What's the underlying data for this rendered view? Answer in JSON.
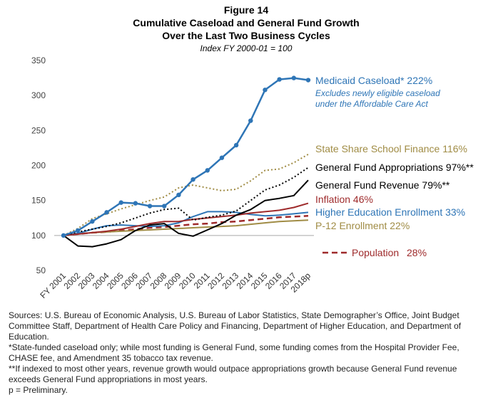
{
  "chart_data": {
    "type": "line",
    "figure_label": "Figure 14",
    "title_line1": "Cumulative Caseload and General Fund Growth",
    "title_line2": "Over the Last Two Business Cycles",
    "subtitle": "Index FY 2000-01 = 100",
    "categories": [
      "FY 2001",
      "2002",
      "2003",
      "2004",
      "2005",
      "2006",
      "2007",
      "2008",
      "2009",
      "2010",
      "2011",
      "2012",
      "2013",
      "2014",
      "2015",
      "2016",
      "2017",
      "2018p"
    ],
    "ylim": [
      50,
      350
    ],
    "yticks": [
      50,
      100,
      150,
      200,
      250,
      300,
      350
    ],
    "baseline": 100,
    "series": [
      {
        "key": "medicaid",
        "name": "Medicaid Caseload* 222%",
        "note1": "Excludes newly eligible caseload",
        "note2": "under the Affordable Care Act",
        "color": "#2e75b6",
        "style": "solid-markers",
        "values": [
          100,
          107,
          120,
          133,
          147,
          146,
          142,
          142,
          158,
          180,
          193,
          211,
          229,
          264,
          308,
          323,
          325,
          322
        ]
      },
      {
        "key": "school",
        "name": "State Share School Finance 116%",
        "color": "#a08c45",
        "style": "dotted",
        "values": [
          100,
          110,
          124,
          131,
          138,
          144,
          150,
          155,
          168,
          172,
          168,
          164,
          166,
          178,
          193,
          195,
          204,
          216
        ]
      },
      {
        "key": "approp",
        "name": "General Fund Appropriations 97%**",
        "color": "#000000",
        "style": "dotted",
        "values": [
          100,
          105,
          109,
          113,
          118,
          125,
          132,
          137,
          139,
          122,
          126,
          129,
          135,
          150,
          165,
          172,
          183,
          197
        ]
      },
      {
        "key": "revenue",
        "name": "General Fund Revenue 79%**",
        "color": "#000000",
        "style": "solid",
        "values": [
          100,
          85,
          84,
          88,
          94,
          107,
          115,
          117,
          103,
          99,
          108,
          117,
          129,
          137,
          150,
          153,
          157,
          179
        ]
      },
      {
        "key": "inflation",
        "name": "Inflation 46%",
        "color": "#9e2a2b",
        "style": "solid",
        "values": [
          100,
          102,
          104,
          106,
          109,
          113,
          117,
          120,
          120,
          123,
          125,
          127,
          129,
          132,
          134,
          136,
          140,
          146
        ]
      },
      {
        "key": "higher_ed",
        "name": "Higher Education Enrollment 33%",
        "color": "#2e75b6",
        "style": "solid",
        "values": [
          100,
          103,
          109,
          114,
          115,
          114,
          113,
          114,
          118,
          127,
          134,
          134,
          133,
          130,
          128,
          129,
          131,
          133
        ]
      },
      {
        "key": "p12",
        "name": "P-12 Enrollment 22%",
        "color": "#a08c45",
        "style": "solid",
        "values": [
          100,
          102,
          104,
          105,
          106,
          107,
          108,
          109,
          110,
          111,
          112,
          113,
          114,
          116,
          118,
          120,
          121,
          122
        ]
      },
      {
        "key": "population",
        "name": "Population",
        "pct": "28%",
        "color": "#9e2a2b",
        "style": "dashed",
        "values": [
          100,
          102,
          104,
          105,
          107,
          109,
          111,
          112,
          114,
          116,
          117,
          119,
          120,
          122,
          124,
          126,
          127,
          128
        ]
      }
    ]
  },
  "footnotes": {
    "sources": "Sources: U.S. Bureau of Economic Analysis, U.S. Bureau of Labor Statistics, State Demographer’s Office, Joint Budget Committee Staff, Department of Health Care Policy and Financing, Department of Higher Education, and Department of Education.",
    "note1": "*State-funded caseload only; while most funding is General Fund, some funding comes from the Hospital Provider Fee, CHASE fee, and Amendment 35 tobacco tax revenue.",
    "note2": "**If indexed to most other years, revenue growth would outpace appropriations growth because General Fund revenue exceeds General Fund appropriations in most years.",
    "note3": "p = Preliminary."
  }
}
